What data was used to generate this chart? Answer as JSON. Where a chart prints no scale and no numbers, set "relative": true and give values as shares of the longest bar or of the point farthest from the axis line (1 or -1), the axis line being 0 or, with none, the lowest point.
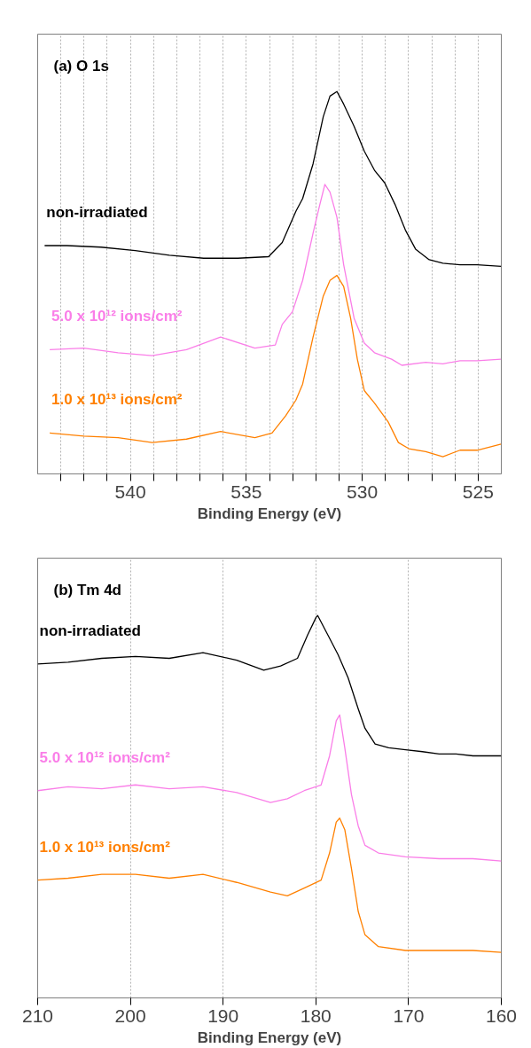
{
  "chart_data": [
    {
      "type": "line",
      "title": "(a) O 1s",
      "xlabel": "Binding Energy (eV)",
      "relative": true,
      "grid": "x",
      "tick_labels": "x",
      "xlim": [
        544,
        524
      ],
      "xticks": [
        {
          "value": 543,
          "label": null
        },
        {
          "value": 542,
          "label": null
        },
        {
          "value": 541,
          "label": null
        },
        540,
        {
          "value": 539,
          "label": null
        },
        {
          "value": 538,
          "label": null
        },
        {
          "value": 537,
          "label": null
        },
        {
          "value": 536,
          "label": null
        },
        535,
        {
          "value": 534,
          "label": null
        },
        {
          "value": 533,
          "label": null
        },
        {
          "value": 532,
          "label": null
        },
        {
          "value": 531,
          "label": null
        },
        530,
        {
          "value": 529,
          "label": null
        },
        {
          "value": 528,
          "label": null
        },
        {
          "value": 527,
          "label": null
        },
        {
          "value": 526,
          "label": null
        },
        525
      ],
      "series": [
        {
          "name": "non-irradiated",
          "color": "#000000",
          "x": [
            543.7,
            542.74,
            541.27,
            539.79,
            538.32,
            536.84,
            535.37,
            534.04,
            533.45,
            532.86,
            532.57,
            532.12,
            531.68,
            531.39,
            531.09,
            530.8,
            530.35,
            529.91,
            529.47,
            529.03,
            528.58,
            528.14,
            527.7,
            527.11,
            526.52,
            525.78,
            525.04,
            524.01
          ],
          "values": [
            0.597,
            0.597,
            0.593,
            0.584,
            0.572,
            0.564,
            0.564,
            0.568,
            0.605,
            0.687,
            0.72,
            0.811,
            0.934,
            0.988,
            1.0,
            0.967,
            0.909,
            0.844,
            0.794,
            0.761,
            0.704,
            0.638,
            0.588,
            0.56,
            0.551,
            0.547,
            0.547,
            0.543
          ]
        },
        {
          "name": "5.0 x 10¹² ions/cm²",
          "color": "#fa7ee8",
          "x": [
            543.48,
            542.01,
            540.53,
            539.06,
            537.58,
            536.11,
            534.63,
            533.75,
            533.45,
            533.01,
            532.57,
            532.12,
            531.83,
            531.61,
            531.39,
            531.09,
            530.8,
            530.35,
            529.91,
            529.47,
            528.73,
            528.29,
            527.26,
            526.52,
            525.78,
            525.04,
            524.01
          ],
          "values": [
            0.325,
            0.329,
            0.317,
            0.309,
            0.325,
            0.358,
            0.329,
            0.337,
            0.391,
            0.424,
            0.506,
            0.63,
            0.704,
            0.757,
            0.737,
            0.671,
            0.547,
            0.407,
            0.342,
            0.317,
            0.3,
            0.284,
            0.292,
            0.288,
            0.296,
            0.296,
            0.3
          ]
        },
        {
          "name": "1.0 x 10¹³ ions/cm²",
          "color": "#ff8000",
          "x": [
            543.48,
            542.01,
            540.53,
            539.06,
            537.58,
            536.11,
            534.63,
            533.89,
            533.3,
            532.86,
            532.57,
            532.12,
            531.68,
            531.39,
            531.09,
            530.8,
            530.5,
            530.21,
            529.91,
            529.47,
            528.88,
            528.44,
            527.99,
            527.26,
            526.52,
            525.78,
            525.04,
            524.01
          ],
          "values": [
            0.107,
            0.099,
            0.095,
            0.082,
            0.091,
            0.111,
            0.095,
            0.107,
            0.152,
            0.193,
            0.235,
            0.358,
            0.465,
            0.506,
            0.519,
            0.49,
            0.407,
            0.3,
            0.218,
            0.185,
            0.136,
            0.082,
            0.066,
            0.058,
            0.045,
            0.062,
            0.062,
            0.078
          ]
        }
      ]
    },
    {
      "type": "line",
      "title": "(b) Tm 4d",
      "xlabel": "Binding Energy (eV)",
      "relative": true,
      "grid": "x",
      "tick_labels": "x",
      "xlim": [
        210,
        160
      ],
      "xticks": [
        210,
        200,
        190,
        180,
        170,
        160
      ],
      "series": [
        {
          "name": "non-irradiated",
          "color": "#000000",
          "x": [
            210,
            206.72,
            203.09,
            199.45,
            195.81,
            192.17,
            188.53,
            185.62,
            183.8,
            181.98,
            180.89,
            179.98,
            179.8,
            178.7,
            177.61,
            176.52,
            175.43,
            174.7,
            173.61,
            172.15,
            170.33,
            168.51,
            166.7,
            164.88,
            163.06,
            160
          ],
          "values": [
            0.873,
            0.878,
            0.888,
            0.893,
            0.888,
            0.903,
            0.883,
            0.857,
            0.868,
            0.888,
            0.949,
            0.995,
            1.0,
            0.949,
            0.898,
            0.837,
            0.756,
            0.705,
            0.664,
            0.654,
            0.649,
            0.644,
            0.638,
            0.638,
            0.633,
            0.633
          ]
        },
        {
          "name": "5.0 x 10¹² ions/cm²",
          "color": "#fa7ee8",
          "x": [
            210,
            206.72,
            203.09,
            199.45,
            195.81,
            192.17,
            188.53,
            184.89,
            183.07,
            181.25,
            179.43,
            178.52,
            177.8,
            177.43,
            176.88,
            176.16,
            175.43,
            174.7,
            173.25,
            170.33,
            166.7,
            163.06,
            160
          ],
          "values": [
            0.542,
            0.552,
            0.547,
            0.557,
            0.547,
            0.552,
            0.537,
            0.511,
            0.521,
            0.542,
            0.557,
            0.633,
            0.725,
            0.74,
            0.654,
            0.532,
            0.45,
            0.399,
            0.379,
            0.369,
            0.364,
            0.364,
            0.358
          ]
        },
        {
          "name": "1.0 x 10¹³ ions/cm²",
          "color": "#ff8000",
          "x": [
            210,
            206.72,
            203.09,
            199.45,
            195.81,
            192.17,
            188.53,
            184.89,
            183.07,
            181.25,
            179.43,
            178.52,
            177.8,
            177.43,
            176.88,
            176.16,
            175.43,
            174.7,
            173.25,
            170.33,
            166.7,
            163.06,
            160
          ],
          "values": [
            0.308,
            0.313,
            0.323,
            0.323,
            0.313,
            0.323,
            0.302,
            0.277,
            0.267,
            0.287,
            0.308,
            0.379,
            0.46,
            0.47,
            0.44,
            0.338,
            0.226,
            0.165,
            0.134,
            0.124,
            0.124,
            0.124,
            0.119
          ]
        }
      ]
    }
  ]
}
